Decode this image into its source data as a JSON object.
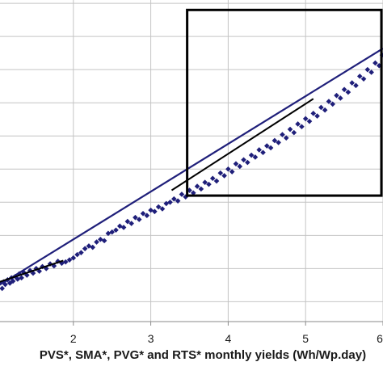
{
  "chart_data": {
    "type": "scatter",
    "title": "",
    "xlabel": "PVS*, SMA*, PVG* and RTS* monthly yields (Wh/Wp.day)",
    "ylabel": "",
    "xlim": [
      1.0,
      6.0
    ],
    "ylim": [
      1.2,
      6.05
    ],
    "grid": true,
    "x_ticks": [
      "2",
      "3",
      "4",
      "5",
      "6"
    ],
    "y_gridlines": [
      1.5,
      2.0,
      2.5,
      3.0,
      3.5,
      4.0,
      4.5,
      5.0,
      5.5,
      6.0
    ],
    "marker_color": "#1f1f7a",
    "fit_line_color": "#1f1f7a",
    "reference_line_color": "#000000",
    "highlight_box_color": "#000000",
    "series": [
      {
        "marker": "diamond",
        "points": [
          [
            1.02,
            1.72
          ],
          [
            1.05,
            1.78
          ],
          [
            1.08,
            1.7
          ],
          [
            1.1,
            1.8
          ],
          [
            1.12,
            1.76
          ],
          [
            1.15,
            1.83
          ],
          [
            1.18,
            1.78
          ],
          [
            1.2,
            1.86
          ],
          [
            1.22,
            1.81
          ],
          [
            1.25,
            1.88
          ],
          [
            1.28,
            1.84
          ],
          [
            1.3,
            1.92
          ],
          [
            1.33,
            1.86
          ],
          [
            1.36,
            1.94
          ],
          [
            1.4,
            1.9
          ],
          [
            1.44,
            1.97
          ],
          [
            1.48,
            1.93
          ],
          [
            1.52,
            2.0
          ],
          [
            1.56,
            1.96
          ],
          [
            1.6,
            2.03
          ],
          [
            1.65,
            2.0
          ],
          [
            1.7,
            2.07
          ],
          [
            1.75,
            2.04
          ],
          [
            1.8,
            2.11
          ],
          [
            1.85,
            2.08
          ],
          [
            1.9,
            2.1
          ],
          [
            1.95,
            2.13
          ],
          [
            2.0,
            2.16
          ],
          [
            2.05,
            2.21
          ],
          [
            2.1,
            2.24
          ],
          [
            2.15,
            2.3
          ],
          [
            2.2,
            2.34
          ],
          [
            2.25,
            2.32
          ],
          [
            2.3,
            2.4
          ],
          [
            2.35,
            2.44
          ],
          [
            2.4,
            2.42
          ],
          [
            2.45,
            2.53
          ],
          [
            2.5,
            2.55
          ],
          [
            2.55,
            2.58
          ],
          [
            2.6,
            2.64
          ],
          [
            2.65,
            2.62
          ],
          [
            2.7,
            2.71
          ],
          [
            2.75,
            2.68
          ],
          [
            2.8,
            2.77
          ],
          [
            2.85,
            2.74
          ],
          [
            2.9,
            2.83
          ],
          [
            2.95,
            2.8
          ],
          [
            3.0,
            2.88
          ],
          [
            3.05,
            2.86
          ],
          [
            3.1,
            2.93
          ],
          [
            3.15,
            2.9
          ],
          [
            3.2,
            2.98
          ],
          [
            3.25,
            3.0
          ],
          [
            3.3,
            3.05
          ],
          [
            3.35,
            3.02
          ],
          [
            3.4,
            3.12
          ],
          [
            3.45,
            3.08
          ],
          [
            3.5,
            3.18
          ],
          [
            3.55,
            3.14
          ],
          [
            3.6,
            3.24
          ],
          [
            3.65,
            3.2
          ],
          [
            3.7,
            3.3
          ],
          [
            3.75,
            3.27
          ],
          [
            3.8,
            3.36
          ],
          [
            3.85,
            3.32
          ],
          [
            3.9,
            3.44
          ],
          [
            3.95,
            3.4
          ],
          [
            4.0,
            3.5
          ],
          [
            4.05,
            3.46
          ],
          [
            4.1,
            3.58
          ],
          [
            4.15,
            3.54
          ],
          [
            4.2,
            3.64
          ],
          [
            4.25,
            3.6
          ],
          [
            4.3,
            3.71
          ],
          [
            4.35,
            3.68
          ],
          [
            4.4,
            3.79
          ],
          [
            4.45,
            3.75
          ],
          [
            4.5,
            3.85
          ],
          [
            4.55,
            3.82
          ],
          [
            4.6,
            3.93
          ],
          [
            4.65,
            3.9
          ],
          [
            4.7,
            4.02
          ],
          [
            4.75,
            3.97
          ],
          [
            4.8,
            4.1
          ],
          [
            4.85,
            4.05
          ],
          [
            4.9,
            4.18
          ],
          [
            4.95,
            4.14
          ],
          [
            5.0,
            4.26
          ],
          [
            5.05,
            4.22
          ],
          [
            5.1,
            4.34
          ],
          [
            5.15,
            4.3
          ],
          [
            5.2,
            4.43
          ],
          [
            5.25,
            4.39
          ],
          [
            5.3,
            4.52
          ],
          [
            5.35,
            4.48
          ],
          [
            5.4,
            4.61
          ],
          [
            5.45,
            4.57
          ],
          [
            5.5,
            4.7
          ],
          [
            5.55,
            4.66
          ],
          [
            5.6,
            4.8
          ],
          [
            5.65,
            4.76
          ],
          [
            5.7,
            4.9
          ],
          [
            5.75,
            4.86
          ],
          [
            5.8,
            5.0
          ],
          [
            5.85,
            4.96
          ],
          [
            5.9,
            5.1
          ],
          [
            5.95,
            5.06
          ],
          [
            5.99,
            5.22
          ]
        ]
      }
    ],
    "fit_line": [
      [
        1.0,
        1.72
      ],
      [
        6.0,
        5.32
      ]
    ],
    "reference_lines": [
      [
        [
          1.0,
          1.78
        ],
        [
          1.87,
          2.12
        ]
      ],
      [
        [
          3.27,
          3.18
        ],
        [
          5.1,
          4.56
        ]
      ]
    ],
    "highlight_box": {
      "x": [
        3.47,
        6.0
      ],
      "y": [
        3.1,
        5.9
      ]
    }
  }
}
